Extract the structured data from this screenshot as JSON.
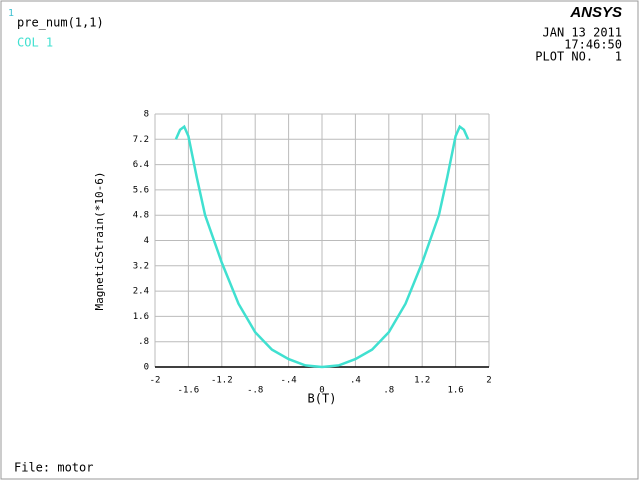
{
  "header": {
    "window_number": "1",
    "date": "JAN 13 2011",
    "time": "17:46:50",
    "plot_no": "PLOT NO.   1",
    "logo": "ANSYS",
    "file": "File: motor"
  },
  "chart_data": {
    "type": "line",
    "title": "pre_num(1,1)",
    "x_label": "B(T)",
    "y_label": "MagneticStrain(*10-6)",
    "x": [
      -1.75,
      -1.7,
      -1.65,
      -1.6,
      -1.5,
      -1.4,
      -1.2,
      -1.0,
      -0.8,
      -0.6,
      -0.4,
      -0.2,
      0,
      0.2,
      0.4,
      0.6,
      0.8,
      1.0,
      1.2,
      1.4,
      1.5,
      1.6,
      1.65,
      1.7,
      1.75
    ],
    "series": [
      {
        "name": "COL  1",
        "color": "#40e0d0",
        "values": [
          7.2,
          7.5,
          7.6,
          7.3,
          6.0,
          4.8,
          3.3,
          2.0,
          1.1,
          0.55,
          0.25,
          0.05,
          0,
          0.05,
          0.25,
          0.55,
          1.1,
          2.0,
          3.3,
          4.8,
          6.0,
          7.3,
          7.6,
          7.5,
          7.2
        ]
      }
    ],
    "xlim": [
      -2,
      2
    ],
    "xticks": [
      -2,
      -1.6,
      -1.2,
      {
        "value": -0.8,
        "label": "-.8"
      },
      {
        "value": -0.4,
        "label": "-.4"
      },
      0,
      {
        "value": 0.4,
        "label": ".4"
      },
      {
        "value": 0.8,
        "label": ".8"
      },
      1.2,
      1.6,
      2
    ],
    "ylim": [
      0,
      8
    ],
    "yticks": [
      0,
      {
        "value": 0.8,
        "label": ".8"
      },
      1.6,
      2.4,
      3.2,
      4,
      4.8,
      5.6,
      6.4,
      7.2,
      8
    ],
    "grid": true
  }
}
